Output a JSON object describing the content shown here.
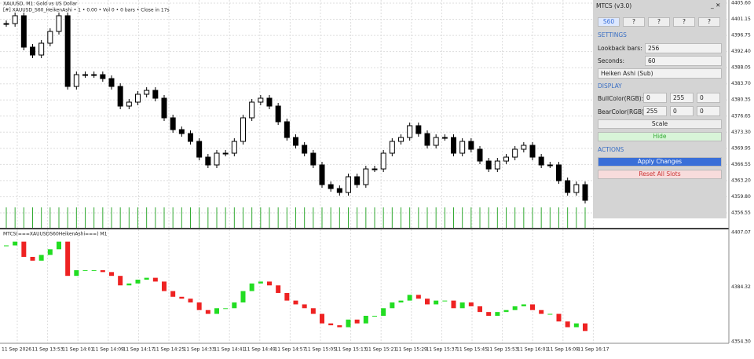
{
  "header": {
    "symbol": "XAUUSD, M1:  Gold vs US Dollar",
    "indicator": "[#] XAUUSD_S60_HeikenAshi  •  1  •  0.00  •  Vol 0  •  0 bars  •  Close in 17s"
  },
  "price_axis": [
    "4405.60",
    "4401.15",
    "4396.75",
    "4392.40",
    "4388.05",
    "4383.70",
    "4380.35",
    "4376.65",
    "4373.30",
    "4369.95",
    "4366.55",
    "4363.20",
    "4359.80",
    "4356.55"
  ],
  "sub_label": "MTCS(===XAUUSDS60HeikenAshi===) M1",
  "sub_axis": [
    "4407.07",
    "4384.32",
    "4354.30"
  ],
  "time_axis": [
    "11 Sep 2026",
    "11 Sep 13:53",
    "11 Sep 14:01",
    "11 Sep 14:09",
    "11 Sep 14:17",
    "11 Sep 14:25",
    "11 Sep 14:33",
    "11 Sep 14:41",
    "11 Sep 14:49",
    "11 Sep 14:57",
    "11 Sep 15:05",
    "11 Sep 15:13",
    "11 Sep 15:21",
    "11 Sep 15:29",
    "11 Sep 15:37",
    "11 Sep 15:45",
    "11 Sep 15:53",
    "11 Sep 16:01",
    "11 Sep 16:09",
    "11 Sep 16:17"
  ],
  "closes": [
    4400.82,
    4402.66,
    4395.31,
    4393.47,
    4396.23,
    4398.98,
    4402.66,
    4386.12,
    4388.88,
    4388.88,
    4388.88,
    4387.96,
    4386.12,
    4381.53,
    4382.45,
    4384.29,
    4385.2,
    4383.37,
    4378.78,
    4376.02,
    4375.1,
    4373.27,
    4369.59,
    4367.76,
    4370.51,
    4370.51,
    4373.27,
    4378.78,
    4382.45,
    4383.37,
    4381.53,
    4377.86,
    4374.18,
    4372.35,
    4370.51,
    4367.76,
    4363.16,
    4362.24,
    4361.32,
    4365.0,
    4363.16,
    4366.83,
    4366.83,
    4370.51,
    4373.27,
    4374.18,
    4376.94,
    4375.1,
    4372.35,
    4374.18,
    4374.18,
    4370.51,
    4373.27,
    4371.43,
    4368.67,
    4366.83,
    4368.67,
    4369.59,
    4371.43,
    4372.35,
    4369.59,
    4367.76,
    4367.76,
    4364.08,
    4361.32,
    4363.16,
    4359.49
  ],
  "panel": {
    "title": "MTCS (v3.0)",
    "slots": [
      "S60",
      "?",
      "?",
      "?",
      "?"
    ],
    "settings": "SETTINGS",
    "lookback_label": "Lookback bars:",
    "lookback": "256",
    "seconds_label": "Seconds:",
    "seconds": "60",
    "mode": "Heiken Ashi (Sub)",
    "display": "DISPLAY",
    "bull_label": "BullColor(RGB):",
    "bull": [
      "0",
      "255",
      "0"
    ],
    "bear_label": "BearColor(RGB):",
    "bear": [
      "255",
      "0",
      "0"
    ],
    "scale": "Scale",
    "hide": "Hide",
    "actions": "ACTIONS",
    "apply": "Apply Changes",
    "reset": "Reset All Slots"
  }
}
